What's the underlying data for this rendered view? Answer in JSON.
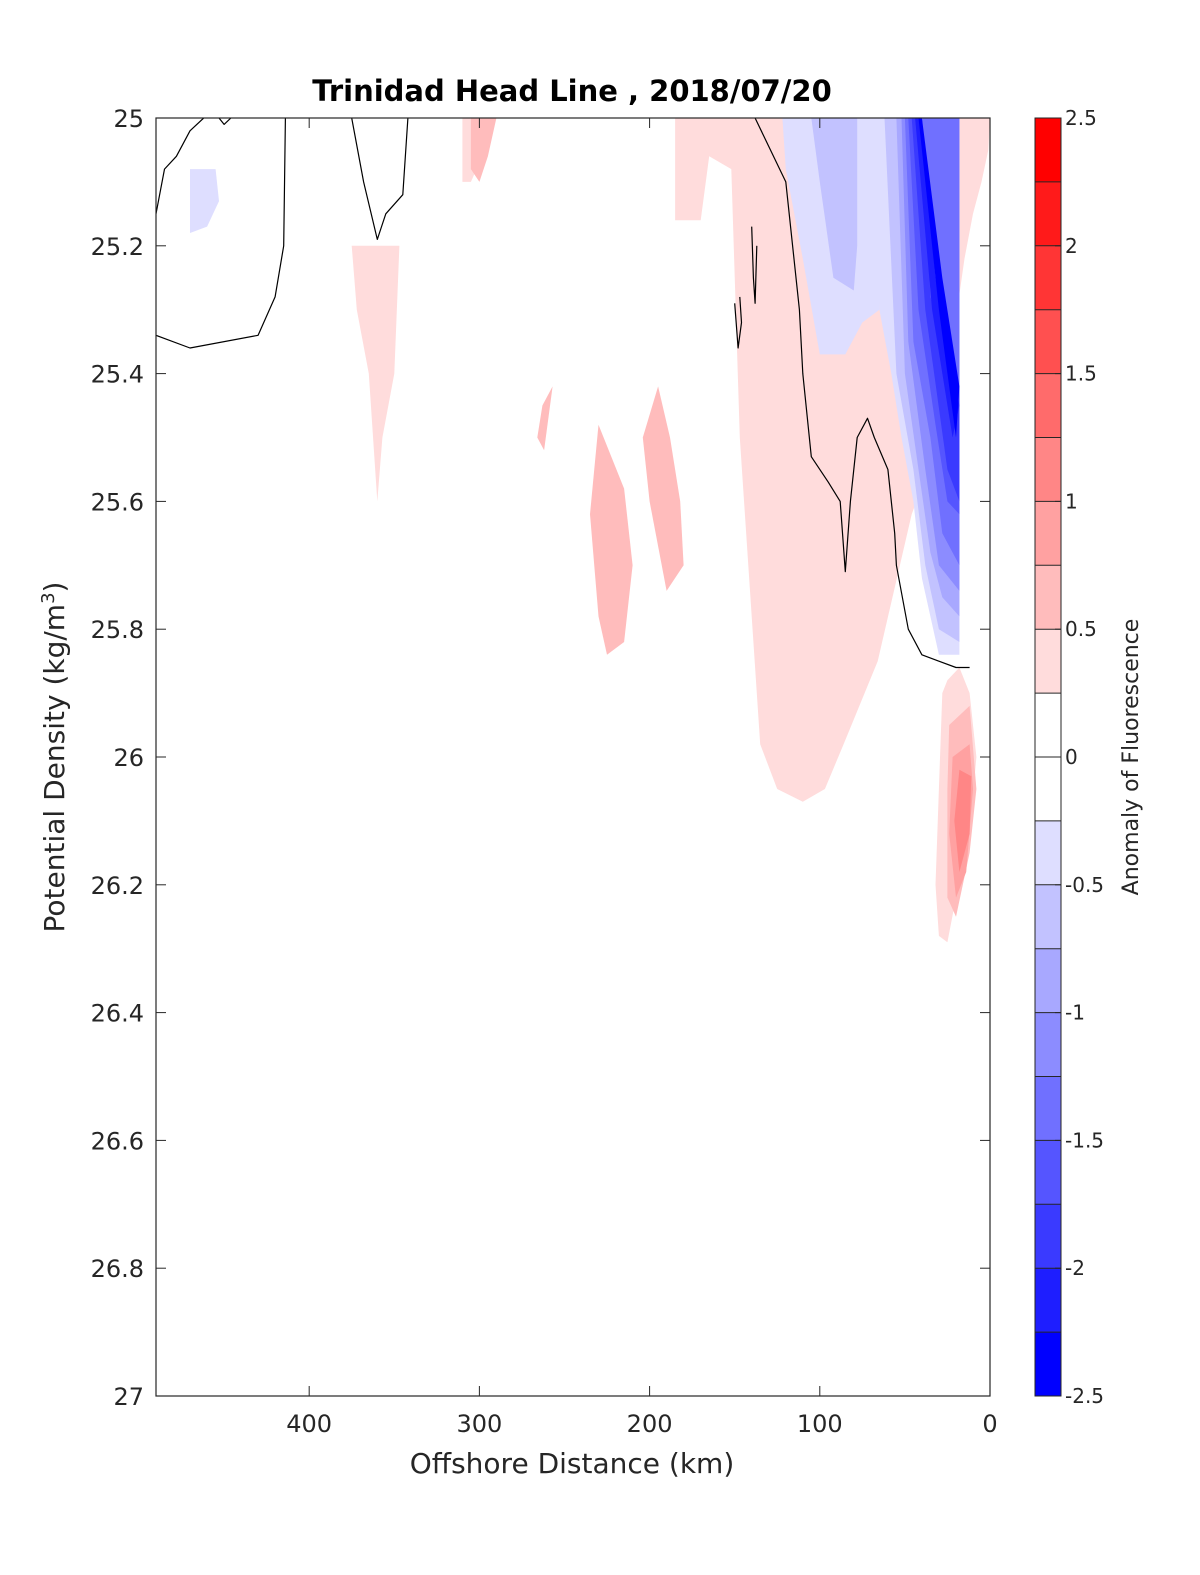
{
  "chart_data": {
    "type": "heatmap",
    "subtype": "filled-contour section",
    "title": "Trinidad Head Line , 2018/07/20",
    "xlabel": "Offshore Distance (km)",
    "ylabel": "Potential Density (kg/m",
    "ylabel_superscript": "3",
    "ylabel_suffix": ")",
    "colorbar_label": "Anomaly of Fluorescence",
    "x_reversed": true,
    "y_reversed": true,
    "xlim": [
      0,
      490
    ],
    "ylim": [
      25,
      27
    ],
    "x_ticks": [
      400,
      300,
      200,
      100,
      0
    ],
    "y_ticks": [
      25,
      25.2,
      25.4,
      25.6,
      25.8,
      26,
      26.2,
      26.4,
      26.6,
      26.8,
      27
    ],
    "y_tick_labels": [
      "25",
      "25.2",
      "25.4",
      "25.6",
      "25.8",
      "26",
      "26.2",
      "26.4",
      "26.6",
      "26.8",
      "27"
    ],
    "colorbar": {
      "range": [
        -2.5,
        2.5
      ],
      "ticks": [
        2.5,
        2,
        1.5,
        1,
        0.5,
        0,
        -0.5,
        -1,
        -1.5,
        -2,
        -2.5
      ],
      "tick_labels": [
        "2.5",
        "2",
        "1.5",
        "1",
        "0.5",
        "0",
        "-0.5",
        "-1",
        "-1.5",
        "-2",
        "-2.5"
      ],
      "levels": [
        {
          "lo": 2.25,
          "hi": 2.5,
          "color": "#ff0000"
        },
        {
          "lo": 2.0,
          "hi": 2.25,
          "color": "#ff1a1a"
        },
        {
          "lo": 1.75,
          "hi": 2.0,
          "color": "#ff3535"
        },
        {
          "lo": 1.5,
          "hi": 1.75,
          "color": "#ff5050"
        },
        {
          "lo": 1.25,
          "hi": 1.5,
          "color": "#ff6b6b"
        },
        {
          "lo": 1.0,
          "hi": 1.25,
          "color": "#ff8686"
        },
        {
          "lo": 0.75,
          "hi": 1.0,
          "color": "#ffa1a1"
        },
        {
          "lo": 0.5,
          "hi": 0.75,
          "color": "#ffbcbc"
        },
        {
          "lo": 0.25,
          "hi": 0.5,
          "color": "#ffdcdc"
        },
        {
          "lo": 0.0,
          "hi": 0.25,
          "color": "#ffffff"
        },
        {
          "lo": -0.25,
          "hi": 0.0,
          "color": "#ffffff"
        },
        {
          "lo": -0.5,
          "hi": -0.25,
          "color": "#dedeff"
        },
        {
          "lo": -0.75,
          "hi": -0.5,
          "color": "#c2c2ff"
        },
        {
          "lo": -1.0,
          "hi": -0.75,
          "color": "#a8a8ff"
        },
        {
          "lo": -1.25,
          "hi": -1.0,
          "color": "#8c8cff"
        },
        {
          "lo": -1.5,
          "hi": -1.25,
          "color": "#7070ff"
        },
        {
          "lo": -1.75,
          "hi": -1.5,
          "color": "#5555ff"
        },
        {
          "lo": -2.0,
          "hi": -1.75,
          "color": "#3a3aff"
        },
        {
          "lo": -2.25,
          "hi": -2.0,
          "color": "#1e1eff"
        },
        {
          "lo": -2.5,
          "hi": -2.25,
          "color": "#0000ff"
        }
      ]
    },
    "regions": [
      {
        "level": 0.375,
        "points": [
          [
            310,
            25.0
          ],
          [
            300,
            25.0
          ],
          [
            300,
            25.07
          ],
          [
            305,
            25.1
          ],
          [
            310,
            25.1
          ]
        ]
      },
      {
        "level": 0.375,
        "points": [
          [
            335,
            25.0
          ],
          [
            185,
            25.0
          ],
          [
            185,
            25.16
          ],
          [
            170,
            25.16
          ],
          [
            165,
            25.06
          ],
          [
            152,
            25.08
          ],
          [
            147,
            25.5
          ],
          [
            135,
            25.98
          ],
          [
            125,
            26.05
          ],
          [
            110,
            26.07
          ],
          [
            97,
            26.05
          ],
          [
            86,
            25.98
          ],
          [
            66,
            25.85
          ],
          [
            46,
            25.62
          ],
          [
            32,
            25.52
          ],
          [
            22,
            25.35
          ],
          [
            15,
            25.22
          ],
          [
            10,
            25.15
          ],
          [
            5,
            25.1
          ],
          [
            1,
            25.05
          ],
          [
            0,
            25.0
          ]
        ]
      },
      {
        "level": 0.375,
        "points": [
          [
            347,
            25.2
          ],
          [
            350,
            25.4
          ],
          [
            357,
            25.5
          ],
          [
            360,
            25.6
          ],
          [
            365,
            25.4
          ],
          [
            372,
            25.3
          ],
          [
            375,
            25.2
          ]
        ]
      },
      {
        "level": 0.625,
        "points": [
          [
            310,
            25.0
          ],
          [
            305,
            25.0
          ],
          [
            305,
            25.08
          ],
          [
            300,
            25.1
          ],
          [
            295,
            25.06
          ],
          [
            290,
            25.0
          ]
        ]
      },
      {
        "level": 0.625,
        "points": [
          [
            257,
            25.42
          ],
          [
            262,
            25.52
          ],
          [
            266,
            25.5
          ],
          [
            263,
            25.45
          ]
        ]
      },
      {
        "level": 0.625,
        "points": [
          [
            230,
            25.48
          ],
          [
            215,
            25.58
          ],
          [
            210,
            25.7
          ],
          [
            215,
            25.82
          ],
          [
            225,
            25.84
          ],
          [
            230,
            25.78
          ],
          [
            235,
            25.62
          ]
        ]
      },
      {
        "level": 0.625,
        "points": [
          [
            195,
            25.42
          ],
          [
            188,
            25.5
          ],
          [
            182,
            25.6
          ],
          [
            180,
            25.7
          ],
          [
            190,
            25.74
          ],
          [
            200,
            25.6
          ],
          [
            204,
            25.5
          ]
        ]
      },
      {
        "level": 0.375,
        "points": [
          [
            18,
            25.86
          ],
          [
            12,
            25.9
          ],
          [
            8,
            26.0
          ],
          [
            12,
            26.12
          ],
          [
            20,
            26.22
          ],
          [
            25,
            26.29
          ],
          [
            30,
            26.28
          ],
          [
            32,
            26.2
          ],
          [
            30,
            26.05
          ],
          [
            28,
            25.9
          ],
          [
            25,
            25.88
          ]
        ]
      },
      {
        "level": 0.625,
        "points": [
          [
            12,
            25.92
          ],
          [
            8,
            26.05
          ],
          [
            12,
            26.15
          ],
          [
            20,
            26.25
          ],
          [
            25,
            26.22
          ],
          [
            25,
            26.05
          ],
          [
            24,
            25.95
          ]
        ]
      },
      {
        "level": 0.875,
        "points": [
          [
            12,
            25.98
          ],
          [
            10,
            26.05
          ],
          [
            14,
            26.18
          ],
          [
            20,
            26.22
          ],
          [
            24,
            26.12
          ],
          [
            22,
            26.0
          ]
        ]
      },
      {
        "level": 1.125,
        "points": [
          [
            11,
            26.03
          ],
          [
            12,
            26.12
          ],
          [
            18,
            26.18
          ],
          [
            21,
            26.1
          ],
          [
            18,
            26.02
          ]
        ]
      },
      {
        "level": -0.375,
        "points": [
          [
            455,
            25.08
          ],
          [
            470,
            25.08
          ],
          [
            470,
            25.18
          ],
          [
            460,
            25.17
          ],
          [
            453,
            25.13
          ]
        ]
      },
      {
        "level": -0.375,
        "points": [
          [
            122,
            25.0
          ],
          [
            120,
            25.08
          ],
          [
            110,
            25.22
          ],
          [
            100,
            25.37
          ],
          [
            85,
            25.37
          ],
          [
            75,
            25.32
          ],
          [
            65,
            25.3
          ],
          [
            65,
            25.0
          ]
        ]
      },
      {
        "level": -0.625,
        "points": [
          [
            105,
            25.0
          ],
          [
            100,
            25.1
          ],
          [
            92,
            25.25
          ],
          [
            80,
            25.27
          ],
          [
            78,
            25.2
          ],
          [
            78,
            25.0
          ]
        ]
      },
      {
        "level": -0.375,
        "points": [
          [
            70,
            25.0
          ],
          [
            65,
            25.3
          ],
          [
            58,
            25.4
          ],
          [
            52,
            25.5
          ],
          [
            45,
            25.6
          ],
          [
            40,
            25.72
          ],
          [
            30,
            25.84
          ],
          [
            18,
            25.84
          ],
          [
            18,
            25.0
          ]
        ]
      },
      {
        "level": -0.625,
        "points": [
          [
            62,
            25.0
          ],
          [
            55,
            25.4
          ],
          [
            45,
            25.55
          ],
          [
            38,
            25.7
          ],
          [
            30,
            25.8
          ],
          [
            18,
            25.82
          ],
          [
            18,
            25.0
          ]
        ]
      },
      {
        "level": -0.875,
        "points": [
          [
            55,
            25.0
          ],
          [
            50,
            25.4
          ],
          [
            42,
            25.55
          ],
          [
            35,
            25.68
          ],
          [
            28,
            25.75
          ],
          [
            18,
            25.78
          ],
          [
            18,
            25.0
          ]
        ]
      },
      {
        "level": -1.125,
        "points": [
          [
            52,
            25.0
          ],
          [
            48,
            25.35
          ],
          [
            38,
            25.55
          ],
          [
            30,
            25.7
          ],
          [
            18,
            25.74
          ],
          [
            18,
            25.0
          ]
        ]
      },
      {
        "level": -1.375,
        "points": [
          [
            50,
            25.0
          ],
          [
            45,
            25.35
          ],
          [
            35,
            25.5
          ],
          [
            28,
            25.65
          ],
          [
            18,
            25.7
          ],
          [
            18,
            25.0
          ]
        ]
      },
      {
        "level": -1.625,
        "points": [
          [
            48,
            25.0
          ],
          [
            42,
            25.3
          ],
          [
            32,
            25.48
          ],
          [
            25,
            25.6
          ],
          [
            18,
            25.62
          ],
          [
            18,
            25.42
          ],
          [
            32,
            25.3
          ],
          [
            40,
            25.0
          ]
        ]
      },
      {
        "level": -1.875,
        "points": [
          [
            46,
            25.0
          ],
          [
            38,
            25.3
          ],
          [
            25,
            25.55
          ],
          [
            18,
            25.6
          ],
          [
            18,
            25.42
          ],
          [
            35,
            25.28
          ],
          [
            40,
            25.0
          ]
        ]
      },
      {
        "level": -2.125,
        "points": [
          [
            44,
            25.0
          ],
          [
            34,
            25.3
          ],
          [
            22,
            25.5
          ],
          [
            18,
            25.45
          ],
          [
            32,
            25.25
          ],
          [
            40,
            25.0
          ]
        ]
      },
      {
        "level": -2.375,
        "points": [
          [
            42,
            25.0
          ],
          [
            30,
            25.3
          ],
          [
            20,
            25.5
          ],
          [
            18,
            25.42
          ],
          [
            28,
            25.25
          ],
          [
            40,
            25.0
          ]
        ]
      }
    ],
    "contour_lines": [
      {
        "level": 0,
        "points": [
          [
            490,
            25.15
          ],
          [
            485,
            25.08
          ],
          [
            478,
            25.06
          ],
          [
            470,
            25.02
          ],
          [
            462,
            25.0
          ]
        ]
      },
      {
        "level": 0,
        "points": [
          [
            490,
            25.34
          ],
          [
            470,
            25.36
          ],
          [
            430,
            25.34
          ],
          [
            420,
            25.28
          ],
          [
            415,
            25.2
          ],
          [
            414,
            25.0
          ]
        ]
      },
      {
        "level": 0,
        "points": [
          [
            453,
            25.0
          ],
          [
            450,
            25.01
          ],
          [
            446,
            25.0
          ]
        ]
      },
      {
        "level": 0,
        "points": [
          [
            375,
            25.0
          ],
          [
            368,
            25.1
          ],
          [
            360,
            25.19
          ],
          [
            355,
            25.15
          ],
          [
            345,
            25.12
          ],
          [
            342,
            25.0
          ]
        ]
      },
      {
        "level": 0,
        "points": [
          [
            140,
            25.17
          ],
          [
            139,
            25.25
          ],
          [
            138,
            25.29
          ],
          [
            137,
            25.2
          ]
        ]
      },
      {
        "level": 0,
        "points": [
          [
            150,
            25.29
          ],
          [
            148,
            25.36
          ],
          [
            146,
            25.32
          ],
          [
            147,
            25.28
          ]
        ]
      },
      {
        "level": 0,
        "points": [
          [
            138,
            25.0
          ],
          [
            120,
            25.1
          ],
          [
            112,
            25.3
          ],
          [
            110,
            25.4
          ],
          [
            105,
            25.53
          ],
          [
            95,
            25.57
          ],
          [
            88,
            25.6
          ],
          [
            85,
            25.71
          ],
          [
            82,
            25.6
          ],
          [
            78,
            25.5
          ],
          [
            72,
            25.47
          ],
          [
            68,
            25.5
          ],
          [
            60,
            25.55
          ],
          [
            56,
            25.65
          ],
          [
            55,
            25.7
          ],
          [
            48,
            25.8
          ],
          [
            40,
            25.84
          ],
          [
            30,
            25.85
          ],
          [
            20,
            25.86
          ],
          [
            12,
            25.86
          ]
        ]
      }
    ]
  }
}
